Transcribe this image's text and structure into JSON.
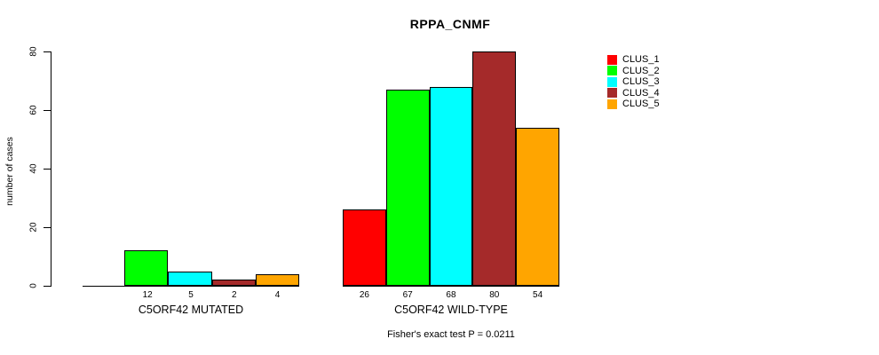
{
  "chart_data": {
    "type": "bar",
    "title": "RPPA_CNMF",
    "ylabel": "number of cases",
    "ylim": [
      0,
      80
    ],
    "yticks": [
      0,
      20,
      40,
      60,
      80
    ],
    "grid": false,
    "legend_position": "right",
    "bar_border_color": "#000000",
    "legend": [
      {
        "name": "CLUS_1",
        "color": "#FF0000"
      },
      {
        "name": "CLUS_2",
        "color": "#00FF00"
      },
      {
        "name": "CLUS_3",
        "color": "#00FFFF"
      },
      {
        "name": "CLUS_4",
        "color": "#A52A2A"
      },
      {
        "name": "CLUS_5",
        "color": "#FFA500"
      }
    ],
    "groups": [
      {
        "category": "C5ORF42 MUTATED",
        "values": [
          0,
          12,
          5,
          2,
          4
        ],
        "bar_labels": [
          "",
          "12",
          "5",
          "2",
          "4"
        ]
      },
      {
        "category": "C5ORF42 WILD-TYPE",
        "values": [
          26,
          67,
          68,
          80,
          54
        ],
        "bar_labels": [
          "26",
          "67",
          "68",
          "80",
          "54"
        ]
      }
    ],
    "annotation": "Fisher's exact test P = 0.0211"
  }
}
